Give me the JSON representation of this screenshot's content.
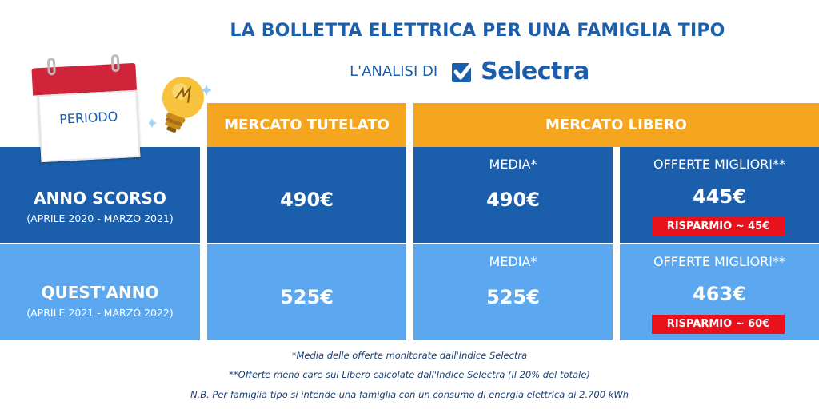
{
  "header": {
    "title": "LA BOLLETTA ELETTRICA PER UNA FAMIGLIA TIPO",
    "subtitle": "L'ANALISI DI",
    "brand": "Selectra"
  },
  "period_label": "PERIODO",
  "columns": {
    "tutelato": "MERCATO TUTELATO",
    "libero": "MERCATO LIBERO"
  },
  "rows": [
    {
      "name": "ANNO SCORSO",
      "range": "(APRILE 2020 - MARZO 2021)",
      "tutelato": "490€",
      "media_label": "MEDIA*",
      "media": "490€",
      "migliori_label": "OFFERTE MIGLIORI**",
      "migliori": "445€",
      "risparmio": "RISPARMIO ~ 45€"
    },
    {
      "name": "QUEST'ANNO",
      "range": "(APRILE 2021 - MARZO 2022)",
      "tutelato": "525€",
      "media_label": "MEDIA*",
      "media": "525€",
      "migliori_label": "OFFERTE MIGLIORI**",
      "migliori": "463€",
      "risparmio": "RISPARMIO ~ 60€"
    }
  ],
  "notes": [
    "*Media delle offerte monitorate dall'Indice Selectra",
    "**Offerte meno care sul Libero calcolate dall'Indice Selectra (il 20% del totale)",
    "N.B. Per famiglia tipo si intende una famiglia con un consumo di energia elettrica di 2.700 kWh"
  ],
  "colors": {
    "dark_blue": "#1b5eab",
    "light_blue": "#5ba7f0",
    "orange": "#f6a51f",
    "red": "#e8111c"
  }
}
